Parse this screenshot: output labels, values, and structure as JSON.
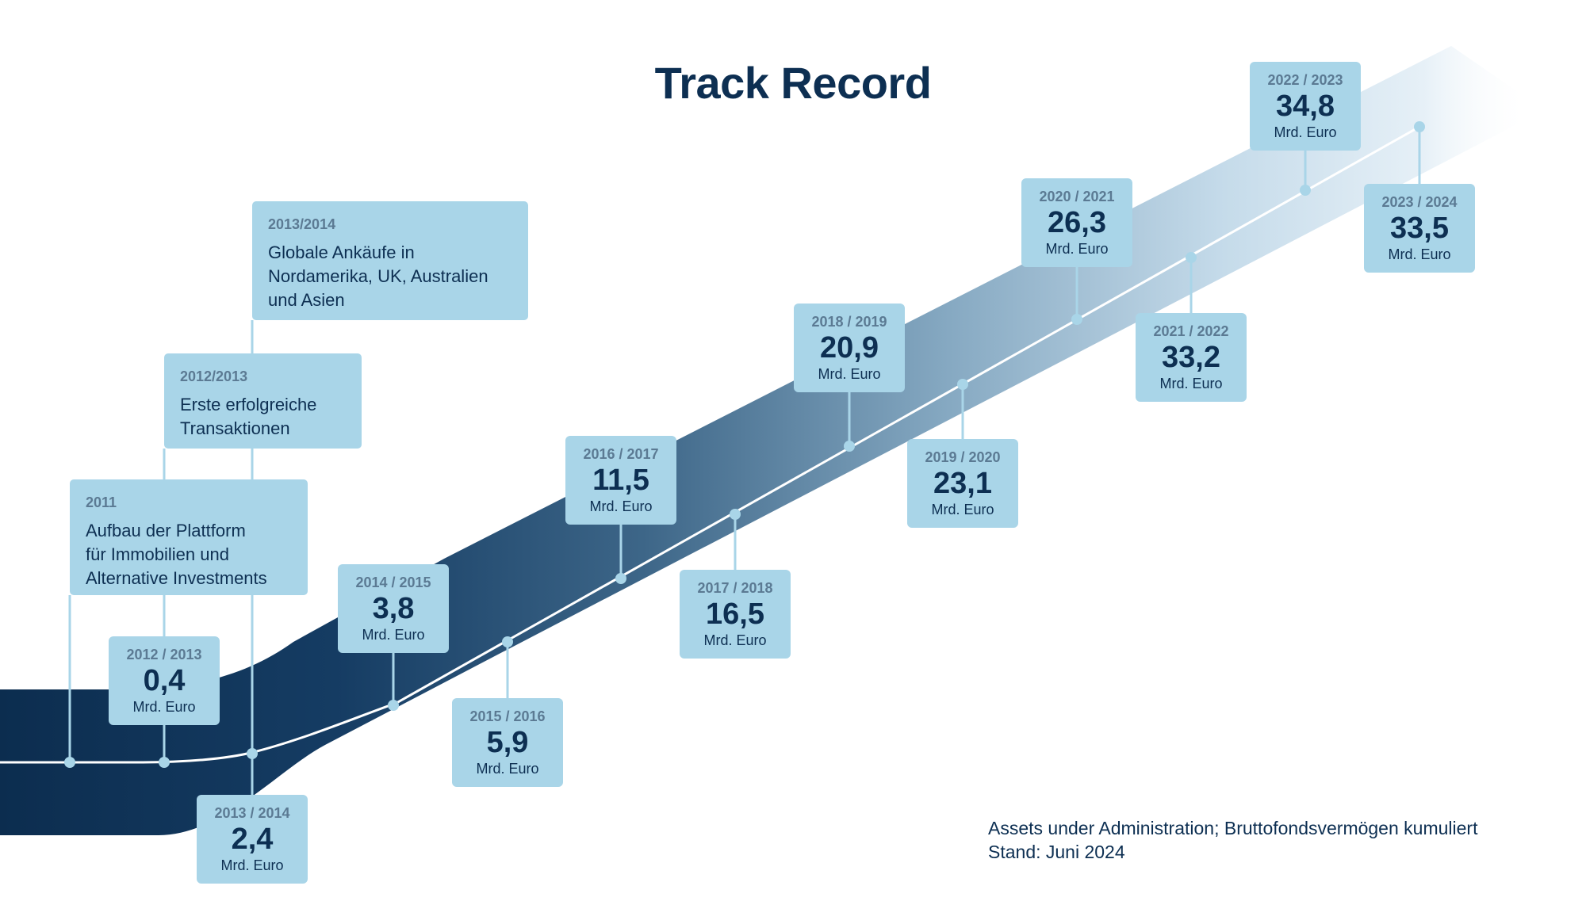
{
  "title": "Track Record",
  "note": {
    "line1": "Assets under Administration; Bruttofondsvermögen kumuliert",
    "line2": "Stand: Juni 2024"
  },
  "colors": {
    "band_dark": "#0c2d4f",
    "band_light": "#dbe9f3",
    "box_fill": "#a9d5e8",
    "connector": "#a9d5e8",
    "text_dark": "#0d2f52",
    "text_muted": "#5b7a93"
  },
  "chart_data": {
    "type": "line",
    "title": "Track Record",
    "unit": "Mrd. Euro",
    "categories": [
      "2012 / 2013",
      "2013 / 2014",
      "2014 / 2015",
      "2015 / 2016",
      "2016 / 2017",
      "2017 / 2018",
      "2018 / 2019",
      "2019 / 2020",
      "2020 / 2021",
      "2021 / 2022",
      "2022 / 2023",
      "2023 / 2024"
    ],
    "values": [
      0.4,
      2.4,
      3.8,
      5.9,
      11.5,
      16.5,
      20.9,
      23.1,
      26.3,
      33.2,
      34.8,
      33.5
    ],
    "value_labels": [
      "0,4",
      "2,4",
      "3,8",
      "5,9",
      "11,5",
      "16,5",
      "20,9",
      "23,1",
      "26,3",
      "33,2",
      "34,8",
      "33,5"
    ],
    "events": [
      {
        "year": "2011",
        "text": "Aufbau der Plattform\nfür Immobilien und\nAlternative Investments"
      },
      {
        "year": "2012/2013",
        "text": "Erste erfolgreiche\nTransaktionen"
      },
      {
        "year": "2013/2014",
        "text": "Globale Ankäufe in\nNordamerika, UK, Australien\nund Asien"
      }
    ]
  }
}
